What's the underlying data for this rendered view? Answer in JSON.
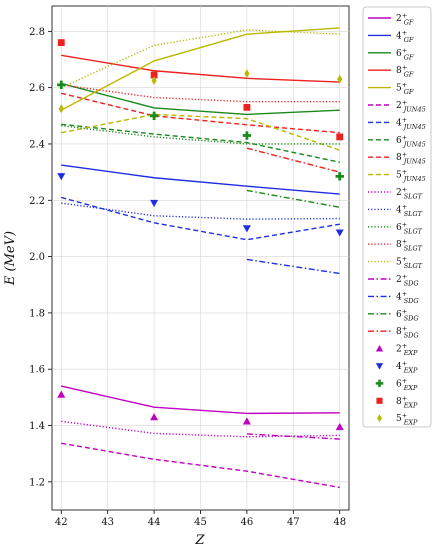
{
  "chart_data": {
    "type": "line",
    "xlabel": "Z",
    "ylabel": "E (MeV)",
    "xlim": [
      41.8,
      48.2
    ],
    "ylim": [
      1.1,
      2.89
    ],
    "xticks": [
      42,
      43,
      44,
      45,
      46,
      47,
      48
    ],
    "yticks": [
      1.2,
      1.4,
      1.6,
      1.8,
      2.0,
      2.2,
      2.4,
      2.6,
      2.8
    ],
    "legend_position": "right",
    "series": [
      {
        "name": "2+_GF",
        "label_main": "2",
        "label_sup": "+",
        "label_sub": "GF",
        "kind": "line",
        "dash": "solid",
        "color": "#c000c0",
        "x": [
          42,
          44,
          46,
          48
        ],
        "y": [
          1.54,
          1.465,
          1.443,
          1.445
        ]
      },
      {
        "name": "4+_GF",
        "label_main": "4",
        "label_sup": "+",
        "label_sub": "GF",
        "kind": "line",
        "dash": "solid",
        "color": "#1f2fe0",
        "x": [
          42,
          44,
          46,
          48
        ],
        "y": [
          2.325,
          2.28,
          2.25,
          2.222
        ]
      },
      {
        "name": "6+_GF",
        "label_main": "6",
        "label_sup": "+",
        "label_sub": "GF",
        "kind": "line",
        "dash": "solid",
        "color": "#1a8a1a",
        "x": [
          42,
          44,
          46,
          48
        ],
        "y": [
          2.615,
          2.528,
          2.505,
          2.52
        ]
      },
      {
        "name": "8+_GF",
        "label_main": "8",
        "label_sup": "+",
        "label_sub": "GF",
        "kind": "line",
        "dash": "solid",
        "color": "#ee2020",
        "x": [
          42,
          44,
          46,
          48
        ],
        "y": [
          2.715,
          2.66,
          2.633,
          2.62
        ]
      },
      {
        "name": "5+_GF",
        "label_main": "5",
        "label_sup": "+",
        "label_sub": "GF",
        "kind": "line",
        "dash": "solid",
        "color": "#b8b800",
        "x": [
          42,
          44,
          46,
          48
        ],
        "y": [
          2.52,
          2.695,
          2.79,
          2.812
        ]
      },
      {
        "name": "2+_JUN45",
        "label_main": "2",
        "label_sup": "+",
        "label_sub": "JUN45",
        "kind": "line",
        "dash": "dashed",
        "color": "#c000c0",
        "x": [
          42,
          44,
          46,
          48
        ],
        "y": [
          1.337,
          1.28,
          1.238,
          1.18
        ]
      },
      {
        "name": "4+_JUN45",
        "label_main": "4",
        "label_sup": "+",
        "label_sub": "JUN45",
        "kind": "line",
        "dash": "dashed",
        "color": "#1f2fe0",
        "x": [
          42,
          44,
          46,
          48
        ],
        "y": [
          2.21,
          2.12,
          2.06,
          2.115
        ]
      },
      {
        "name": "6+_JUN45",
        "label_main": "6",
        "label_sup": "+",
        "label_sub": "JUN45",
        "kind": "line",
        "dash": "dashed",
        "color": "#1a8a1a",
        "x": [
          42,
          44,
          46,
          48
        ],
        "y": [
          2.47,
          2.435,
          2.405,
          2.335
        ]
      },
      {
        "name": "8+_JUN45",
        "label_main": "8",
        "label_sup": "+",
        "label_sub": "JUN45",
        "kind": "line",
        "dash": "dashed",
        "color": "#ee2020",
        "x": [
          42,
          44,
          46,
          48
        ],
        "y": [
          2.58,
          2.5,
          2.468,
          2.44
        ]
      },
      {
        "name": "5+_JUN45",
        "label_main": "5",
        "label_sup": "+",
        "label_sub": "JUN45",
        "kind": "line",
        "dash": "dashed",
        "color": "#b8b800",
        "x": [
          42,
          44,
          46,
          48
        ],
        "y": [
          2.44,
          2.505,
          2.49,
          2.378
        ]
      },
      {
        "name": "2+_SLGT",
        "label_main": "2",
        "label_sup": "+",
        "label_sub": "SLGT",
        "kind": "line",
        "dash": "dotted",
        "color": "#c000c0",
        "x": [
          42,
          44,
          46,
          48
        ],
        "y": [
          1.415,
          1.372,
          1.36,
          1.365
        ]
      },
      {
        "name": "4+_SLGT",
        "label_main": "4",
        "label_sup": "+",
        "label_sub": "SLGT",
        "kind": "line",
        "dash": "dotted",
        "color": "#1f2fe0",
        "x": [
          42,
          44,
          46,
          48
        ],
        "y": [
          2.19,
          2.145,
          2.133,
          2.135
        ]
      },
      {
        "name": "6+_SLGT",
        "label_main": "6",
        "label_sup": "+",
        "label_sub": "SLGT",
        "kind": "line",
        "dash": "dotted",
        "color": "#1a8a1a",
        "x": [
          42,
          44,
          46,
          48
        ],
        "y": [
          2.465,
          2.425,
          2.4,
          2.4
        ]
      },
      {
        "name": "8+_SLGT",
        "label_main": "8",
        "label_sup": "+",
        "label_sub": "SLGT",
        "kind": "line",
        "dash": "dotted",
        "color": "#ee2020",
        "x": [
          42,
          44,
          46,
          48
        ],
        "y": [
          2.61,
          2.565,
          2.55,
          2.55
        ]
      },
      {
        "name": "5+_SLGT",
        "label_main": "5",
        "label_sup": "+",
        "label_sub": "SLGT",
        "kind": "line",
        "dash": "dotted",
        "color": "#b8b800",
        "x": [
          42,
          44,
          46,
          48
        ],
        "y": [
          2.6,
          2.75,
          2.805,
          2.79
        ]
      },
      {
        "name": "2+_SDG",
        "label_main": "2",
        "label_sup": "+",
        "label_sub": "SDG",
        "kind": "line",
        "dash": "dashdot",
        "color": "#c000c0",
        "x": [
          46,
          48
        ],
        "y": [
          1.37,
          1.352
        ]
      },
      {
        "name": "4+_SDG",
        "label_main": "4",
        "label_sup": "+",
        "label_sub": "SDG",
        "kind": "line",
        "dash": "dashdot",
        "color": "#1f2fe0",
        "x": [
          46,
          48
        ],
        "y": [
          1.99,
          1.94
        ]
      },
      {
        "name": "6+_SDG",
        "label_main": "6",
        "label_sup": "+",
        "label_sub": "SDG",
        "kind": "line",
        "dash": "dashdot",
        "color": "#1a8a1a",
        "x": [
          46,
          48
        ],
        "y": [
          2.235,
          2.175
        ]
      },
      {
        "name": "8+_SDG",
        "label_main": "8",
        "label_sup": "+",
        "label_sub": "SDG",
        "kind": "line",
        "dash": "dashdot",
        "color": "#ee2020",
        "x": [
          46,
          48
        ],
        "y": [
          2.385,
          2.3
        ]
      },
      {
        "name": "2+_EXP",
        "label_main": "2",
        "label_sup": "+",
        "label_sub": "EXP",
        "kind": "marker",
        "marker": "triangle-up",
        "color": "#c000c0",
        "x": [
          42,
          44,
          46,
          48
        ],
        "y": [
          1.51,
          1.43,
          1.415,
          1.395
        ]
      },
      {
        "name": "4+_EXP",
        "label_main": "4",
        "label_sup": "+",
        "label_sub": "EXP",
        "kind": "marker",
        "marker": "triangle-down",
        "color": "#1f2fe0",
        "x": [
          42,
          44,
          46,
          48
        ],
        "y": [
          2.285,
          2.19,
          2.1,
          2.085
        ]
      },
      {
        "name": "6+_EXP",
        "label_main": "6",
        "label_sup": "+",
        "label_sub": "EXP",
        "kind": "marker",
        "marker": "plus",
        "color": "#1a8a1a",
        "x": [
          42,
          44,
          46,
          48
        ],
        "y": [
          2.61,
          2.5,
          2.43,
          2.285
        ]
      },
      {
        "name": "8+_EXP",
        "label_main": "8",
        "label_sup": "+",
        "label_sub": "EXP",
        "kind": "marker",
        "marker": "square",
        "color": "#ee2020",
        "x": [
          42,
          44,
          46,
          48
        ],
        "y": [
          2.76,
          2.645,
          2.53,
          2.425
        ]
      },
      {
        "name": "5+_EXP",
        "label_main": "5",
        "label_sup": "+",
        "label_sub": "EXP",
        "kind": "marker",
        "marker": "diamond",
        "color": "#b8b800",
        "x": [
          42,
          44,
          46,
          48
        ],
        "y": [
          2.525,
          2.625,
          2.65,
          2.63
        ]
      }
    ]
  }
}
